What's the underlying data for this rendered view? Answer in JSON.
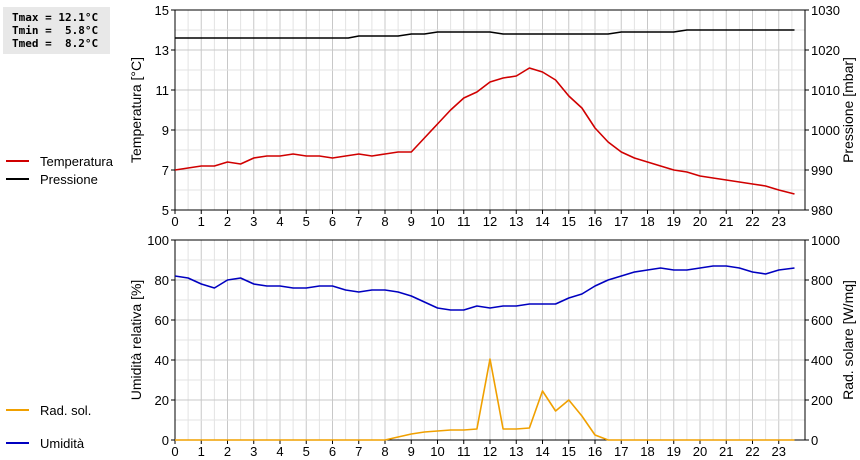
{
  "stats": {
    "tmax": "Tmax = 12.1°C",
    "tmin": "Tmin =  5.8°C",
    "tmed": "Tmed =  8.2°C"
  },
  "legend": {
    "top": [
      {
        "label": "Temperatura",
        "color": "#d00000"
      },
      {
        "label": "Pressione",
        "color": "#000000"
      }
    ],
    "bottom": [
      {
        "label": "Umidità",
        "color": "#0000c0"
      },
      {
        "label": "Rad. sol.",
        "color": "#f0a000"
      }
    ]
  },
  "chart_data": [
    {
      "type": "line",
      "xlim": [
        0,
        24
      ],
      "x_ticks": [
        "0",
        "1",
        "2",
        "3",
        "4",
        "5",
        "6",
        "7",
        "8",
        "9",
        "10",
        "11",
        "12",
        "13",
        "14",
        "15",
        "16",
        "17",
        "18",
        "19",
        "20",
        "21",
        "22",
        "23"
      ],
      "grid": true,
      "left_axis": {
        "label": "Temperatura [°C]",
        "ylim": [
          5,
          15
        ],
        "ticks": [
          "5",
          "7",
          "9",
          "11",
          "13",
          "15"
        ]
      },
      "right_axis": {
        "label": "Pressione [mbar]",
        "ylim": [
          980,
          1030
        ],
        "ticks": [
          "980",
          "990",
          "1000",
          "1010",
          "1020",
          "1030"
        ]
      },
      "series": [
        {
          "name": "Temperatura",
          "axis": "left",
          "color": "#d00000",
          "points": [
            [
              0,
              7.0
            ],
            [
              0.5,
              7.1
            ],
            [
              1,
              7.2
            ],
            [
              1.5,
              7.2
            ],
            [
              2,
              7.4
            ],
            [
              2.5,
              7.3
            ],
            [
              3,
              7.6
            ],
            [
              3.5,
              7.7
            ],
            [
              4,
              7.7
            ],
            [
              4.5,
              7.8
            ],
            [
              5,
              7.7
            ],
            [
              5.5,
              7.7
            ],
            [
              6,
              7.6
            ],
            [
              6.5,
              7.7
            ],
            [
              7,
              7.8
            ],
            [
              7.5,
              7.7
            ],
            [
              8,
              7.8
            ],
            [
              8.5,
              7.9
            ],
            [
              9,
              7.9
            ],
            [
              9.5,
              8.6
            ],
            [
              10,
              9.3
            ],
            [
              10.5,
              10.0
            ],
            [
              11,
              10.6
            ],
            [
              11.5,
              10.9
            ],
            [
              12,
              11.4
            ],
            [
              12.5,
              11.6
            ],
            [
              13,
              11.7
            ],
            [
              13.5,
              12.1
            ],
            [
              14,
              11.9
            ],
            [
              14.5,
              11.5
            ],
            [
              15,
              10.7
            ],
            [
              15.5,
              10.1
            ],
            [
              16,
              9.1
            ],
            [
              16.5,
              8.4
            ],
            [
              17,
              7.9
            ],
            [
              17.5,
              7.6
            ],
            [
              18,
              7.4
            ],
            [
              18.5,
              7.2
            ],
            [
              19,
              7.0
            ],
            [
              19.5,
              6.9
            ],
            [
              20,
              6.7
            ],
            [
              20.5,
              6.6
            ],
            [
              21,
              6.5
            ],
            [
              21.5,
              6.4
            ],
            [
              22,
              6.3
            ],
            [
              22.5,
              6.2
            ],
            [
              23,
              6.0
            ],
            [
              23.6,
              5.8
            ]
          ]
        },
        {
          "name": "Pressione",
          "axis": "right",
          "color": "#000000",
          "points": [
            [
              0,
              1023
            ],
            [
              6.6,
              1023
            ],
            [
              7,
              1023.5
            ],
            [
              8.5,
              1023.5
            ],
            [
              9,
              1024
            ],
            [
              9.5,
              1024
            ],
            [
              10,
              1024.5
            ],
            [
              12,
              1024.5
            ],
            [
              12.5,
              1024
            ],
            [
              16.5,
              1024
            ],
            [
              17,
              1024.5
            ],
            [
              19,
              1024.5
            ],
            [
              19.5,
              1025
            ],
            [
              23.6,
              1025
            ]
          ]
        }
      ]
    },
    {
      "type": "line",
      "xlim": [
        0,
        24
      ],
      "x_ticks": [
        "0",
        "1",
        "2",
        "3",
        "4",
        "5",
        "6",
        "7",
        "8",
        "9",
        "10",
        "11",
        "12",
        "13",
        "14",
        "15",
        "16",
        "17",
        "18",
        "19",
        "20",
        "21",
        "22",
        "23"
      ],
      "grid": true,
      "left_axis": {
        "label": "Umidità relativa [%]",
        "ylim": [
          0,
          100
        ],
        "ticks": [
          "0",
          "20",
          "40",
          "60",
          "80",
          "100"
        ]
      },
      "right_axis": {
        "label": "Rad. solare [W/mq]",
        "ylim": [
          0,
          1000
        ],
        "ticks": [
          "0",
          "200",
          "400",
          "600",
          "800",
          "1000"
        ]
      },
      "series": [
        {
          "name": "Umidità",
          "axis": "left",
          "color": "#0000c0",
          "points": [
            [
              0,
              82
            ],
            [
              0.5,
              81
            ],
            [
              1,
              78
            ],
            [
              1.5,
              76
            ],
            [
              2,
              80
            ],
            [
              2.5,
              81
            ],
            [
              3,
              78
            ],
            [
              3.5,
              77
            ],
            [
              4,
              77
            ],
            [
              4.5,
              76
            ],
            [
              5,
              76
            ],
            [
              5.5,
              77
            ],
            [
              6,
              77
            ],
            [
              6.5,
              75
            ],
            [
              7,
              74
            ],
            [
              7.5,
              75
            ],
            [
              8,
              75
            ],
            [
              8.5,
              74
            ],
            [
              9,
              72
            ],
            [
              9.5,
              69
            ],
            [
              10,
              66
            ],
            [
              10.5,
              65
            ],
            [
              11,
              65
            ],
            [
              11.5,
              67
            ],
            [
              12,
              66
            ],
            [
              12.5,
              67
            ],
            [
              13,
              67
            ],
            [
              13.5,
              68
            ],
            [
              14,
              68
            ],
            [
              14.5,
              68
            ],
            [
              15,
              71
            ],
            [
              15.5,
              73
            ],
            [
              16,
              77
            ],
            [
              16.5,
              80
            ],
            [
              17,
              82
            ],
            [
              17.5,
              84
            ],
            [
              18,
              85
            ],
            [
              18.5,
              86
            ],
            [
              19,
              85
            ],
            [
              19.5,
              85
            ],
            [
              20,
              86
            ],
            [
              20.5,
              87
            ],
            [
              21,
              87
            ],
            [
              21.5,
              86
            ],
            [
              22,
              84
            ],
            [
              22.5,
              83
            ],
            [
              23,
              85
            ],
            [
              23.6,
              86
            ]
          ]
        },
        {
          "name": "Rad. sol.",
          "axis": "right",
          "color": "#f0a000",
          "points": [
            [
              0,
              0
            ],
            [
              8,
              0
            ],
            [
              8.5,
              15
            ],
            [
              9,
              30
            ],
            [
              9.5,
              40
            ],
            [
              10,
              45
            ],
            [
              10.5,
              50
            ],
            [
              11,
              50
            ],
            [
              11.5,
              55
            ],
            [
              12,
              405
            ],
            [
              12.5,
              55
            ],
            [
              13,
              55
            ],
            [
              13.5,
              60
            ],
            [
              14,
              245
            ],
            [
              14.5,
              145
            ],
            [
              15,
              200
            ],
            [
              15.5,
              120
            ],
            [
              16,
              25
            ],
            [
              16.5,
              0
            ],
            [
              23.6,
              0
            ]
          ]
        }
      ]
    }
  ]
}
